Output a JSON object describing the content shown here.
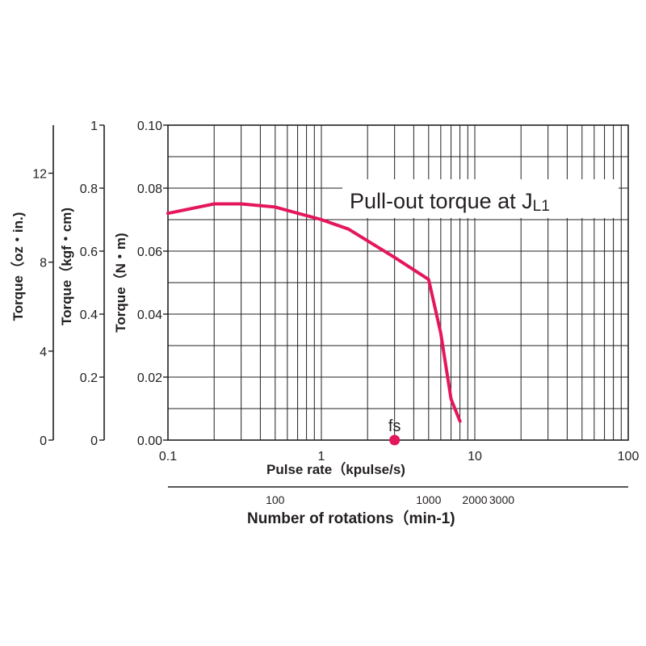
{
  "chart_data": {
    "type": "line",
    "x_scale": "log",
    "xlim": [
      0.1,
      100
    ],
    "ylim": [
      0,
      0.1
    ],
    "grid": true,
    "annotation": "Pull-out torque at J",
    "annotation_sub": "L1",
    "series": [
      {
        "x": [
          0.1,
          0.2,
          0.3,
          0.5,
          1,
          1.5,
          3,
          5,
          6,
          7,
          8
        ],
        "y": [
          0.072,
          0.075,
          0.075,
          0.074,
          0.07,
          0.067,
          0.058,
          0.051,
          0.034,
          0.013,
          0.006
        ]
      }
    ],
    "marker": {
      "label": "fs",
      "x": 3,
      "y": 0
    },
    "colors": {
      "curve": "#e4175b",
      "marker": "#e4175b",
      "axis": "#231f20"
    },
    "x_axis": {
      "label": "Pulse rate（kpulse/s)",
      "ticks": [
        {
          "value": 0.1,
          "label": "0.1"
        },
        {
          "value": 1,
          "label": "1"
        },
        {
          "value": 10,
          "label": "10"
        },
        {
          "value": 100,
          "label": "100"
        }
      ]
    },
    "rpm_axis": {
      "label": "Number of rotations（min-1)",
      "ticks": [
        {
          "value": 100,
          "label": "100"
        },
        {
          "value": 1000,
          "label": "1000"
        },
        {
          "value": 2000,
          "label": "2000"
        },
        {
          "value": 3000,
          "label": "3000"
        }
      ]
    },
    "y_axes": [
      {
        "label": "Torque（N・m)",
        "ticks": [
          {
            "value": 0.0,
            "label": "0.00"
          },
          {
            "value": 0.02,
            "label": "0.02"
          },
          {
            "value": 0.04,
            "label": "0.04"
          },
          {
            "value": 0.06,
            "label": "0.06"
          },
          {
            "value": 0.08,
            "label": "0.08"
          },
          {
            "value": 0.1,
            "label": "0.10"
          }
        ]
      },
      {
        "label": "Torque（kgf・cm)",
        "ticks": [
          {
            "value": 0,
            "label": "0"
          },
          {
            "value": 0.2,
            "label": "0.2"
          },
          {
            "value": 0.4,
            "label": "0.4"
          },
          {
            "value": 0.6,
            "label": "0.6"
          },
          {
            "value": 0.8,
            "label": "0.8"
          },
          {
            "value": 1,
            "label": "1"
          }
        ]
      },
      {
        "label": "Torque（oz・in.)",
        "ticks": [
          {
            "value": 0,
            "label": "0"
          },
          {
            "value": 4,
            "label": "4"
          },
          {
            "value": 8,
            "label": "8"
          },
          {
            "value": 12,
            "label": "12"
          }
        ]
      }
    ]
  }
}
